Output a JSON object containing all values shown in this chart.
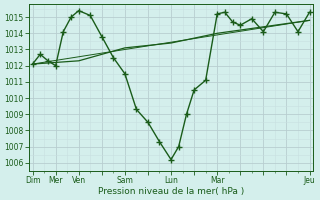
{
  "bg_color": "#d4efec",
  "grid_color_major": "#b8ced0",
  "grid_color_minor": "#c8dfe0",
  "line_color": "#1a5c1a",
  "ylabel_vals": [
    1006,
    1007,
    1008,
    1009,
    1010,
    1011,
    1012,
    1013,
    1014,
    1015
  ],
  "ylim": [
    1005.5,
    1015.8
  ],
  "xlim": [
    -0.15,
    12.15
  ],
  "xlabel": "Pression niveau de la mer( hPa )",
  "major_xtick_labels": [
    "Dim",
    "Mer",
    "Ven",
    "Sam",
    "Lun",
    "Mar",
    "Jeu"
  ],
  "major_xtick_positions": [
    0,
    1,
    2,
    4,
    6,
    8,
    12
  ],
  "line1_x": [
    0,
    0.33,
    0.67,
    1,
    1.33,
    1.67,
    2,
    2.5,
    3,
    3.5,
    4,
    4.5,
    5,
    5.5,
    6,
    6.33,
    6.67,
    7,
    7.5,
    8,
    8.33,
    8.67,
    9,
    9.5,
    10,
    10.5,
    11,
    11.5,
    12
  ],
  "line1_y": [
    1012.1,
    1012.7,
    1012.3,
    1012.0,
    1014.1,
    1015.0,
    1015.4,
    1015.1,
    1013.8,
    1012.5,
    1011.5,
    1009.3,
    1008.5,
    1007.3,
    1006.2,
    1007.0,
    1009.0,
    1010.5,
    1011.1,
    1015.2,
    1015.3,
    1014.7,
    1014.5,
    1014.9,
    1014.1,
    1015.3,
    1015.2,
    1014.1,
    1015.3
  ],
  "line2_x": [
    0,
    2,
    4,
    6,
    8,
    12
  ],
  "line2_y": [
    1012.1,
    1012.3,
    1013.1,
    1013.4,
    1014.0,
    1014.8
  ],
  "line3_x": [
    0,
    12
  ],
  "line3_y": [
    1012.1,
    1014.8
  ],
  "marker": "+",
  "markersize": 4.0,
  "linewidth": 1.0,
  "tick_fontsize": 5.5,
  "xlabel_fontsize": 6.5
}
